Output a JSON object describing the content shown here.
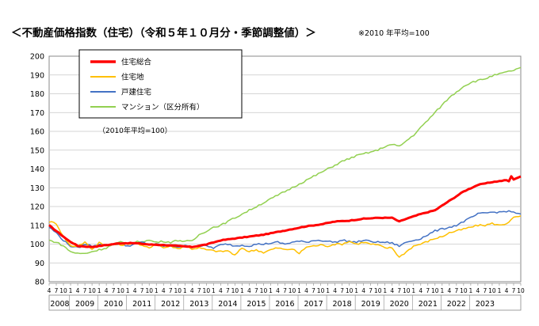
{
  "header": {
    "title": "＜不動産価格指数（住宅）（令和５年１０月分・季節調整値）＞",
    "base_note": "※2010 年平均=100"
  },
  "chart_data": {
    "type": "line",
    "base_label": "（2010年平均=100）",
    "ylim": [
      80,
      200
    ],
    "yticks": [
      80,
      90,
      100,
      110,
      120,
      130,
      140,
      150,
      160,
      170,
      180,
      190,
      200
    ],
    "grid": true,
    "legend_position": "top-left",
    "start": "2008-04",
    "years": [
      "2008",
      "2009",
      "2010",
      "2011",
      "2012",
      "2013",
      "2014",
      "2015",
      "2016",
      "2017",
      "2018",
      "2019",
      "2020",
      "2021",
      "2022",
      "2023"
    ],
    "month_ticks": [
      "4",
      "7",
      "10",
      "1"
    ],
    "x_first_months": [
      "4",
      "7",
      "10"
    ],
    "x_last_months": [
      "1",
      "4",
      "7",
      "10"
    ],
    "series": [
      {
        "name": "住宅総合",
        "color": "#ff0000",
        "width": 3,
        "anchors": [
          [
            0,
            110
          ],
          [
            4,
            106
          ],
          [
            8,
            102
          ],
          [
            12,
            99
          ],
          [
            18,
            98.5
          ],
          [
            24,
            99.5
          ],
          [
            30,
            100.5
          ],
          [
            36,
            100.5
          ],
          [
            42,
            99.8
          ],
          [
            48,
            99.5
          ],
          [
            54,
            99
          ],
          [
            60,
            98.5
          ],
          [
            66,
            99.8
          ],
          [
            72,
            102
          ],
          [
            78,
            103
          ],
          [
            84,
            104
          ],
          [
            90,
            105
          ],
          [
            96,
            106.5
          ],
          [
            102,
            108
          ],
          [
            108,
            109.5
          ],
          [
            114,
            110.5
          ],
          [
            120,
            112
          ],
          [
            126,
            112.5
          ],
          [
            132,
            113.5
          ],
          [
            138,
            114
          ],
          [
            144,
            114
          ],
          [
            147,
            112
          ],
          [
            150,
            113.5
          ],
          [
            156,
            116
          ],
          [
            162,
            118
          ],
          [
            168,
            123
          ],
          [
            174,
            128
          ],
          [
            180,
            131.5
          ],
          [
            186,
            133
          ],
          [
            192,
            134
          ],
          [
            193,
            133.5
          ],
          [
            194,
            136
          ],
          [
            195,
            134.5
          ],
          [
            196,
            135
          ],
          [
            198,
            136
          ]
        ]
      },
      {
        "name": "住宅地",
        "color": "#ffc000",
        "width": 1.5,
        "anchors": [
          [
            0,
            112
          ],
          [
            3,
            111
          ],
          [
            6,
            104
          ],
          [
            9,
            99
          ],
          [
            12,
            99
          ],
          [
            15,
            101
          ],
          [
            18,
            97
          ],
          [
            21,
            101
          ],
          [
            24,
            99
          ],
          [
            27,
            100
          ],
          [
            30,
            99.5
          ],
          [
            33,
            100
          ],
          [
            36,
            101
          ],
          [
            39,
            99
          ],
          [
            42,
            98
          ],
          [
            45,
            100.5
          ],
          [
            48,
            98
          ],
          [
            51,
            99
          ],
          [
            54,
            97.5
          ],
          [
            57,
            99
          ],
          [
            60,
            97.5
          ],
          [
            63,
            98
          ],
          [
            66,
            97
          ],
          [
            69,
            96.5
          ],
          [
            72,
            96
          ],
          [
            75,
            96.5
          ],
          [
            78,
            94
          ],
          [
            81,
            98
          ],
          [
            84,
            96
          ],
          [
            87,
            97
          ],
          [
            90,
            95.5
          ],
          [
            93,
            97
          ],
          [
            96,
            98
          ],
          [
            99,
            97
          ],
          [
            102,
            97.5
          ],
          [
            105,
            95
          ],
          [
            108,
            98.5
          ],
          [
            111,
            99
          ],
          [
            114,
            99.5
          ],
          [
            117,
            99
          ],
          [
            120,
            100
          ],
          [
            123,
            100
          ],
          [
            126,
            101.5
          ],
          [
            129,
            100
          ],
          [
            132,
            101
          ],
          [
            135,
            100
          ],
          [
            138,
            99.5
          ],
          [
            141,
            98
          ],
          [
            144,
            98
          ],
          [
            147,
            93
          ],
          [
            150,
            96
          ],
          [
            153,
            99
          ],
          [
            156,
            100
          ],
          [
            159,
            101.5
          ],
          [
            162,
            103
          ],
          [
            165,
            104
          ],
          [
            168,
            106
          ],
          [
            171,
            107
          ],
          [
            174,
            108
          ],
          [
            177,
            109
          ],
          [
            180,
            110
          ],
          [
            183,
            110
          ],
          [
            186,
            111
          ],
          [
            189,
            110
          ],
          [
            192,
            111
          ],
          [
            195,
            114
          ],
          [
            198,
            115
          ]
        ]
      },
      {
        "name": "戸建住宅",
        "color": "#4472c4",
        "width": 1.5,
        "anchors": [
          [
            0,
            109
          ],
          [
            3,
            106
          ],
          [
            6,
            102
          ],
          [
            9,
            99
          ],
          [
            12,
            98
          ],
          [
            15,
            100
          ],
          [
            18,
            99
          ],
          [
            21,
            100
          ],
          [
            24,
            99.5
          ],
          [
            27,
            100
          ],
          [
            30,
            100
          ],
          [
            33,
            99
          ],
          [
            36,
            100
          ],
          [
            39,
            101
          ],
          [
            42,
            99.5
          ],
          [
            45,
            100
          ],
          [
            48,
            99
          ],
          [
            51,
            99
          ],
          [
            54,
            98.5
          ],
          [
            57,
            99
          ],
          [
            60,
            98.5
          ],
          [
            63,
            99
          ],
          [
            66,
            99
          ],
          [
            69,
            98
          ],
          [
            72,
            99.5
          ],
          [
            75,
            100
          ],
          [
            78,
            99
          ],
          [
            81,
            99.5
          ],
          [
            84,
            99
          ],
          [
            87,
            100
          ],
          [
            90,
            100
          ],
          [
            93,
            100.5
          ],
          [
            96,
            101
          ],
          [
            99,
            100
          ],
          [
            102,
            101
          ],
          [
            105,
            101.5
          ],
          [
            108,
            101
          ],
          [
            111,
            102
          ],
          [
            114,
            102
          ],
          [
            117,
            101.5
          ],
          [
            120,
            101
          ],
          [
            123,
            102
          ],
          [
            126,
            101.5
          ],
          [
            129,
            101
          ],
          [
            132,
            102
          ],
          [
            135,
            101.5
          ],
          [
            138,
            101
          ],
          [
            141,
            101
          ],
          [
            144,
            100.5
          ],
          [
            147,
            99
          ],
          [
            150,
            101
          ],
          [
            153,
            102
          ],
          [
            156,
            103
          ],
          [
            159,
            105
          ],
          [
            162,
            107
          ],
          [
            165,
            108
          ],
          [
            168,
            109
          ],
          [
            171,
            110
          ],
          [
            174,
            112
          ],
          [
            177,
            114
          ],
          [
            180,
            116
          ],
          [
            183,
            116.5
          ],
          [
            186,
            117
          ],
          [
            189,
            117
          ],
          [
            192,
            117.5
          ],
          [
            195,
            117
          ],
          [
            198,
            116
          ]
        ]
      },
      {
        "name": "マンション（区分所有）",
        "color": "#92d050",
        "width": 1.5,
        "anchors": [
          [
            0,
            102
          ],
          [
            3,
            101
          ],
          [
            6,
            99
          ],
          [
            9,
            96
          ],
          [
            12,
            95
          ],
          [
            15,
            95
          ],
          [
            18,
            96
          ],
          [
            21,
            97
          ],
          [
            24,
            98
          ],
          [
            27,
            100
          ],
          [
            30,
            101
          ],
          [
            33,
            100
          ],
          [
            36,
            101
          ],
          [
            39,
            101.5
          ],
          [
            42,
            102
          ],
          [
            45,
            101
          ],
          [
            48,
            101.5
          ],
          [
            51,
            101
          ],
          [
            54,
            102
          ],
          [
            57,
            101.5
          ],
          [
            60,
            101.5
          ],
          [
            63,
            105
          ],
          [
            66,
            107
          ],
          [
            69,
            109
          ],
          [
            72,
            110
          ],
          [
            75,
            112
          ],
          [
            78,
            114
          ],
          [
            81,
            116
          ],
          [
            84,
            118
          ],
          [
            87,
            120
          ],
          [
            90,
            122
          ],
          [
            93,
            124
          ],
          [
            96,
            126
          ],
          [
            99,
            128
          ],
          [
            102,
            130
          ],
          [
            105,
            132
          ],
          [
            108,
            134
          ],
          [
            111,
            136
          ],
          [
            114,
            138
          ],
          [
            117,
            140
          ],
          [
            120,
            142
          ],
          [
            123,
            144
          ],
          [
            126,
            145.5
          ],
          [
            129,
            147
          ],
          [
            132,
            148
          ],
          [
            135,
            149
          ],
          [
            138,
            150
          ],
          [
            141,
            152
          ],
          [
            144,
            153
          ],
          [
            147,
            152
          ],
          [
            150,
            155
          ],
          [
            153,
            158
          ],
          [
            156,
            162
          ],
          [
            159,
            166
          ],
          [
            162,
            170
          ],
          [
            165,
            174
          ],
          [
            168,
            178
          ],
          [
            171,
            181
          ],
          [
            174,
            184
          ],
          [
            177,
            186
          ],
          [
            180,
            187
          ],
          [
            183,
            188
          ],
          [
            186,
            189.5
          ],
          [
            189,
            190.5
          ],
          [
            192,
            191.5
          ],
          [
            195,
            192.5
          ],
          [
            198,
            194
          ]
        ]
      }
    ]
  }
}
